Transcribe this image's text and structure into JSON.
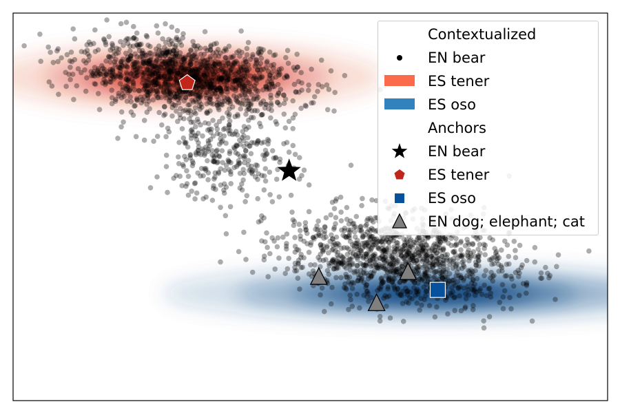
{
  "chart_data": {
    "type": "scatter",
    "title": "",
    "xlabel": "",
    "ylabel": "",
    "xlim": [
      -3.0,
      4.0
    ],
    "ylim": [
      -3.0,
      2.6
    ],
    "xticks": false,
    "yticks": false,
    "grid": false,
    "legend_position": "top-right",
    "colors": {
      "en_bear_points": "#000000",
      "es_tener_density": "#c1261a",
      "es_tener_swatch": "#fb6a4a",
      "es_oso_density": "#08306b",
      "es_oso_swatch": "#3182bd",
      "es_tener_anchor": "#c1261a",
      "es_oso_anchor": "#08519c",
      "en_other_anchors": "#808080"
    },
    "contextualized": {
      "en_bear": {
        "clusters": [
          {
            "center": [
              -0.95,
              1.68
            ],
            "spread": [
              0.85,
              0.33
            ],
            "count": 1300
          },
          {
            "center": [
              -0.5,
              0.55
            ],
            "spread": [
              0.55,
              0.45
            ],
            "count": 300
          },
          {
            "center": [
              1.55,
              -0.95
            ],
            "spread": [
              0.9,
              0.42
            ],
            "count": 1200
          }
        ]
      },
      "es_tener": {
        "center": [
          -0.95,
          1.68
        ],
        "spread": [
          1.05,
          0.22
        ]
      },
      "es_oso": {
        "center": [
          1.95,
          -1.45
        ],
        "spread": [
          1.45,
          0.18
        ]
      }
    },
    "anchors": [
      {
        "name": "EN bear",
        "x": 0.25,
        "y": 0.32,
        "marker": "star"
      },
      {
        "name": "ES tener",
        "x": -0.95,
        "y": 1.6,
        "marker": "pentagon"
      },
      {
        "name": "ES oso",
        "x": 2.0,
        "y": -1.4,
        "marker": "square"
      },
      {
        "name": "EN dog",
        "x": 0.6,
        "y": -1.22,
        "marker": "triangle"
      },
      {
        "name": "EN elephant",
        "x": 1.28,
        "y": -1.6,
        "marker": "triangle"
      },
      {
        "name": "EN cat",
        "x": 1.65,
        "y": -1.15,
        "marker": "triangle"
      }
    ],
    "legend": [
      {
        "label": "Contextualized",
        "marker": "none"
      },
      {
        "label": "EN bear",
        "marker": "dot"
      },
      {
        "label": "ES tener",
        "marker": "patch-red"
      },
      {
        "label": "ES oso",
        "marker": "patch-blue"
      },
      {
        "label": "Anchors",
        "marker": "none"
      },
      {
        "label": "EN bear",
        "marker": "star"
      },
      {
        "label": "ES tener",
        "marker": "pentagon"
      },
      {
        "label": "ES oso",
        "marker": "square"
      },
      {
        "label": "EN dog; elephant; cat",
        "marker": "triangle"
      }
    ]
  }
}
